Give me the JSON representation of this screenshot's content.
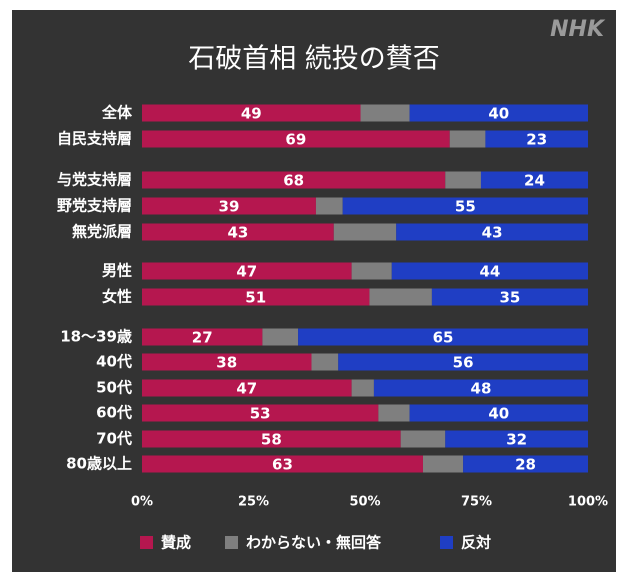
{
  "chart_data": {
    "type": "stacked-barh",
    "title": "石破首相 続投の賛否",
    "logo": "NHK",
    "categories": [
      "全体",
      "自民支持層",
      "与党支持層",
      "野党支持層",
      "無党派層",
      "男性",
      "女性",
      "18〜39歳",
      "40代",
      "50代",
      "60代",
      "70代",
      "80歳以上"
    ],
    "series": [
      {
        "name": "賛成",
        "color": "#b5174f",
        "values": [
          49,
          69,
          68,
          39,
          43,
          47,
          51,
          27,
          38,
          47,
          53,
          58,
          63
        ]
      },
      {
        "name": "わからない・無回答",
        "color": "#7f7f7f",
        "values": [
          11,
          8,
          8,
          6,
          14,
          9,
          14,
          8,
          6,
          5,
          7,
          10,
          9
        ]
      },
      {
        "name": "反対",
        "color": "#1f3ec4",
        "values": [
          40,
          23,
          24,
          55,
          43,
          44,
          35,
          65,
          56,
          48,
          40,
          32,
          28
        ]
      }
    ],
    "xlim": [
      0,
      100
    ],
    "xticks": [
      {
        "value": 0,
        "label": "0%"
      },
      {
        "value": 25,
        "label": "25%"
      },
      {
        "value": 50,
        "label": "50%"
      },
      {
        "value": 75,
        "label": "75%"
      },
      {
        "value": 100,
        "label": "100%"
      }
    ],
    "legend": "bottom"
  }
}
